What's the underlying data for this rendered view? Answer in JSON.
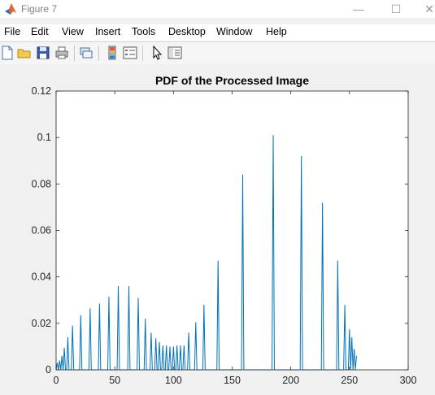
{
  "window": {
    "title": "Figure 7",
    "minimize_glyph": "—",
    "maximize_glyph": "☐",
    "close_glyph": "✕"
  },
  "menu": [
    "File",
    "Edit",
    "View",
    "Insert",
    "Tools",
    "Desktop",
    "Window",
    "Help"
  ],
  "toolbar": {
    "icons": [
      "new-figure-icon",
      "open-file-icon",
      "save-icon",
      "print-icon",
      "link-plot-icon",
      "insert-colorbar-icon",
      "insert-legend-icon",
      "edit-plot-icon",
      "property-inspector-icon"
    ]
  },
  "colors": {
    "line": "#0072bd",
    "axes_bg": "#ffffff",
    "figure_bg": "#f0f0f0"
  },
  "chart_data": {
    "type": "line",
    "title": "PDF of the Processed Image",
    "xlabel": "",
    "ylabel": "",
    "xlim": [
      0,
      300
    ],
    "ylim": [
      0,
      0.12
    ],
    "xticks": [
      0,
      50,
      100,
      150,
      200,
      250,
      300
    ],
    "yticks": [
      0,
      0.02,
      0.04,
      0.06,
      0.08,
      0.1,
      0.12
    ],
    "yticklabels": [
      "0",
      "0.02",
      "0.04",
      "0.06",
      "0.08",
      "0.1",
      "0.12"
    ],
    "grid": false,
    "spikes": [
      [
        1,
        0.003
      ],
      [
        3,
        0.004
      ],
      [
        5,
        0.006
      ],
      [
        7,
        0.0095
      ],
      [
        10,
        0.014
      ],
      [
        14,
        0.019
      ],
      [
        21,
        0.0235
      ],
      [
        29,
        0.0265
      ],
      [
        37,
        0.0285
      ],
      [
        45,
        0.0315
      ],
      [
        53,
        0.036
      ],
      [
        62,
        0.036
      ],
      [
        70,
        0.031
      ],
      [
        76,
        0.022
      ],
      [
        81,
        0.016
      ],
      [
        85,
        0.0135
      ],
      [
        88,
        0.012
      ],
      [
        91,
        0.0105
      ],
      [
        94,
        0.0105
      ],
      [
        97,
        0.01
      ],
      [
        100,
        0.01
      ],
      [
        103,
        0.0105
      ],
      [
        106,
        0.0105
      ],
      [
        109,
        0.0105
      ],
      [
        113,
        0.016
      ],
      [
        119,
        0.0205
      ],
      [
        126,
        0.028
      ],
      [
        138,
        0.047
      ],
      [
        159,
        0.084
      ],
      [
        185,
        0.101
      ],
      [
        209,
        0.092
      ],
      [
        227,
        0.072
      ],
      [
        240,
        0.047
      ],
      [
        246,
        0.028
      ],
      [
        250,
        0.0175
      ],
      [
        252,
        0.014
      ],
      [
        254,
        0.009
      ],
      [
        256,
        0.006
      ]
    ]
  }
}
